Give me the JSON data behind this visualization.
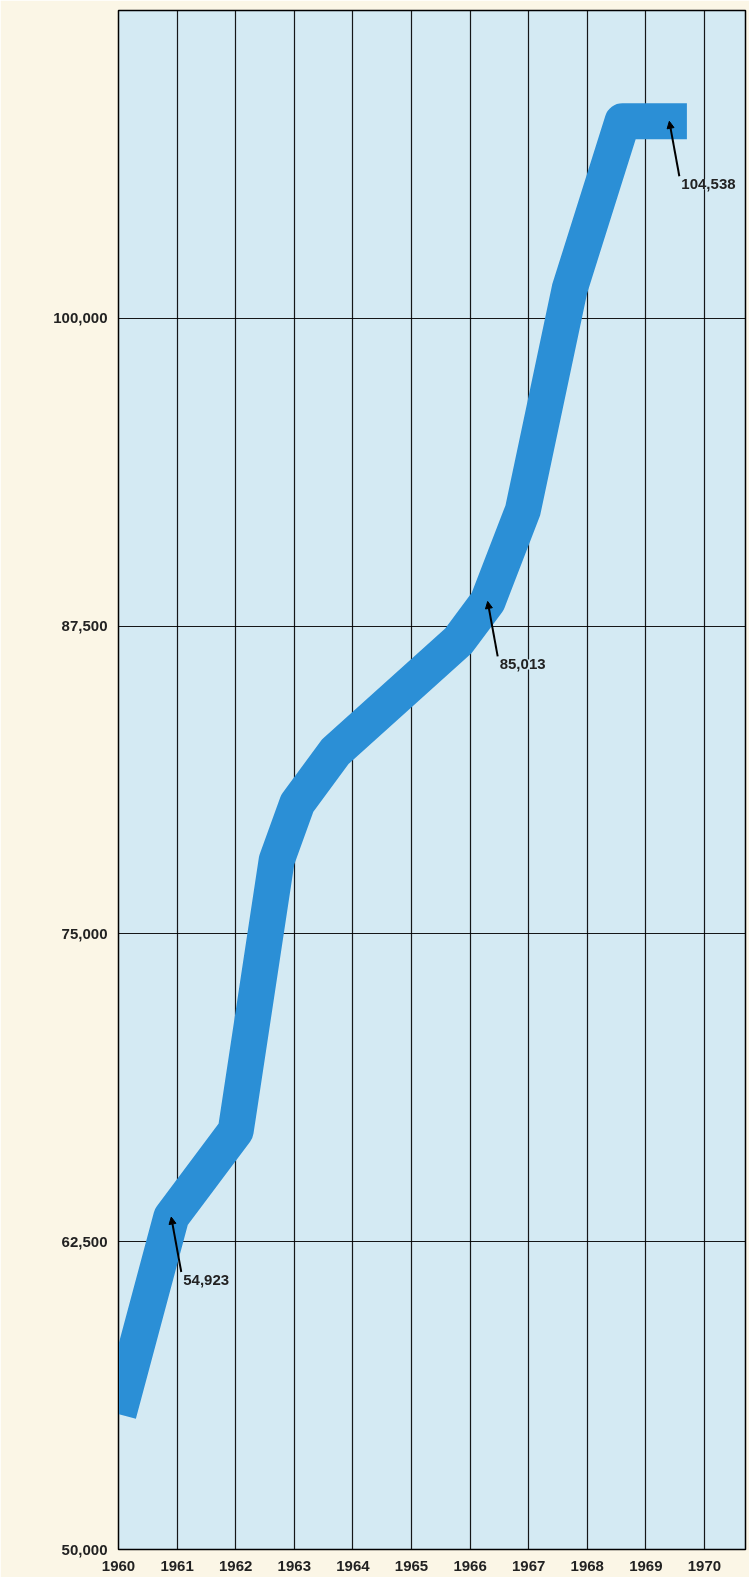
{
  "chart_data": {
    "type": "line",
    "x": [
      1960.0,
      1960.9,
      1962.0,
      1962.7,
      1963.05,
      1963.7,
      1965.8,
      1966.3,
      1966.9,
      1967.7,
      1968.6,
      1969.7
    ],
    "series": [
      {
        "color": "#2b8fd6",
        "values": [
          55500,
          63500,
          67000,
          78000,
          80300,
          82400,
          86900,
          88500,
          92200,
          101200,
          108000,
          108000
        ]
      }
    ],
    "xlim": [
      1960,
      1970.7
    ],
    "xticks": [
      1960,
      1961,
      1962,
      1963,
      1964,
      1965,
      1966,
      1967,
      1968,
      1969,
      1970
    ],
    "ylim": [
      50000,
      112500
    ],
    "yticks": [
      {
        "value": 50000,
        "label": "50,000"
      },
      {
        "value": 62500,
        "label": "62,500"
      },
      {
        "value": 75000,
        "label": "75,000"
      },
      {
        "value": 87500,
        "label": "87,500"
      },
      {
        "value": 100000,
        "label": "100,000"
      }
    ],
    "grid": true,
    "marker": "none",
    "line_style": "solid",
    "annotations": [
      {
        "text": "54,923",
        "x": 1960.9,
        "y": 63500
      },
      {
        "text": "85,013",
        "x": 1966.3,
        "y": 88500
      },
      {
        "text": "104,538",
        "x": 1969.4,
        "y": 108000
      }
    ]
  }
}
